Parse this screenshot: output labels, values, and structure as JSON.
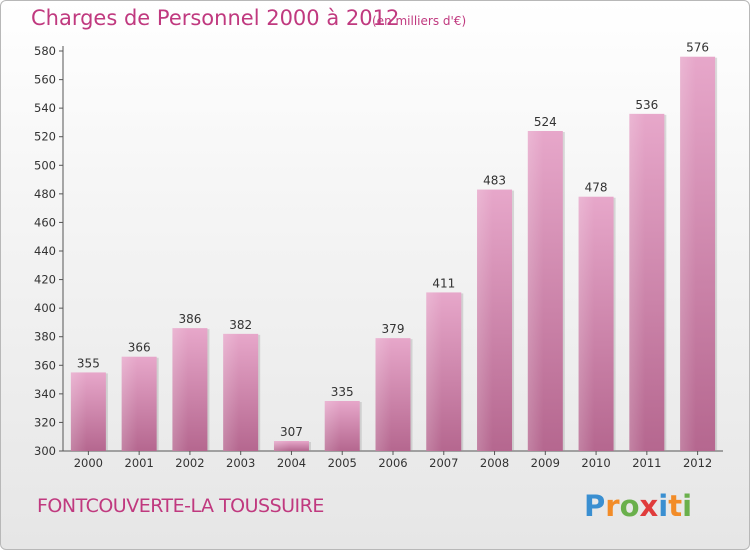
{
  "header": {
    "title": "Charges de Personnel 2000 à 2012",
    "subtitle": "(en milliers d'€)"
  },
  "footer": {
    "commune": "FONTCOUVERTE-LA TOUSSUIRE",
    "logo_letters": [
      "P",
      "r",
      "o",
      "x",
      "i",
      "t",
      "i"
    ],
    "logo_colors": [
      "#3a8fd1",
      "#f28c28",
      "#6ab04c",
      "#e03c3c",
      "#3a8fd1",
      "#f28c28",
      "#6ab04c"
    ]
  },
  "chart_data": {
    "type": "bar",
    "title": "Charges de Personnel 2000 à 2012",
    "subtitle": "(en milliers d'€)",
    "xlabel": "",
    "ylabel": "",
    "categories": [
      "2000",
      "2001",
      "2002",
      "2003",
      "2004",
      "2005",
      "2006",
      "2007",
      "2008",
      "2009",
      "2010",
      "2011",
      "2012"
    ],
    "values": [
      355,
      366,
      386,
      382,
      307,
      335,
      379,
      411,
      483,
      524,
      478,
      536,
      576
    ],
    "ylim": [
      300,
      580
    ],
    "yticks": [
      300,
      320,
      340,
      360,
      380,
      400,
      420,
      440,
      460,
      480,
      500,
      520,
      540,
      560,
      580
    ],
    "grid": false,
    "bar_color": "#d889b4"
  }
}
